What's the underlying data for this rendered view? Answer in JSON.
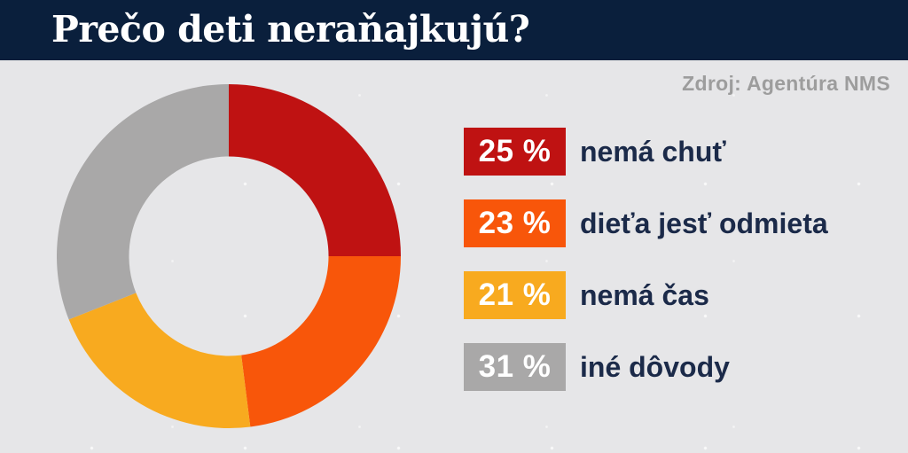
{
  "header": {
    "title": "Prečo deti neraňajkujú?"
  },
  "source": {
    "label": "Zdroj: Agentúra NMS"
  },
  "chart_data": {
    "type": "pie",
    "variant": "donut",
    "title": "Prečo deti neraňajkujú?",
    "source": "Zdroj: Agentúra NMS",
    "direction": "clockwise",
    "start_angle_deg": 0,
    "inner_radius_ratio": 0.58,
    "legend_position": "right",
    "segments": [
      {
        "label": "nemá chuť",
        "value": 25,
        "percent_label": "25 %",
        "color": "#bf1212"
      },
      {
        "label": "dieťa jesť odmieta",
        "value": 23,
        "percent_label": "23 %",
        "color": "#f8560a"
      },
      {
        "label": "nemá čas",
        "value": 21,
        "percent_label": "21 %",
        "color": "#f8aa1f"
      },
      {
        "label": "iné dôvody",
        "value": 31,
        "percent_label": "31 %",
        "color": "#a9a8a8"
      }
    ],
    "colors": {
      "background": "#e6e6e8",
      "header_bar": "#0a1f3c",
      "label_text": "#1b2a49",
      "source_text": "#9d9d9d",
      "badge_text": "#ffffff"
    }
  }
}
